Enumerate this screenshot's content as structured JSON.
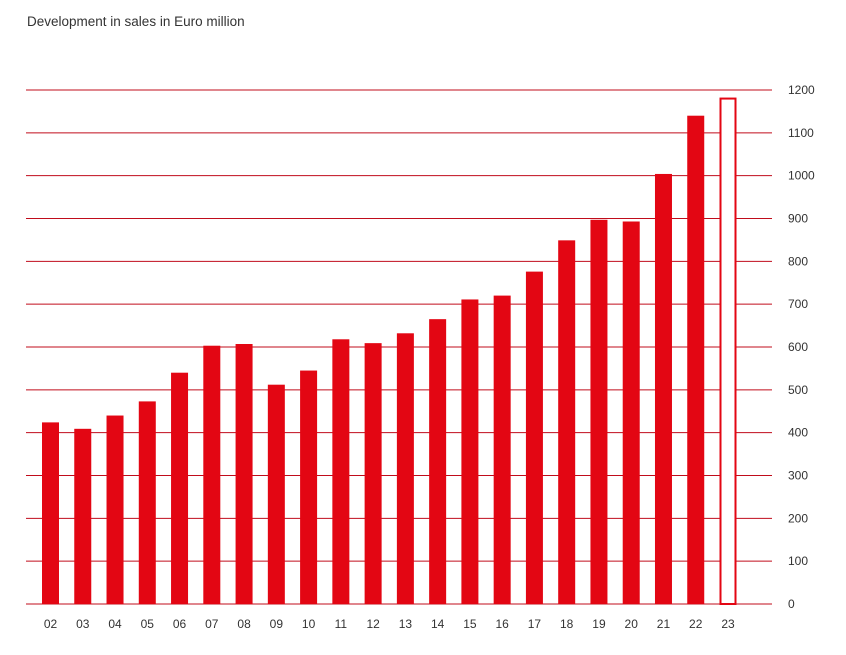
{
  "chart_data": {
    "type": "bar",
    "title": "Development in sales in Euro million",
    "xlabel": "",
    "ylabel": "",
    "categories": [
      "02",
      "03",
      "04",
      "05",
      "06",
      "07",
      "08",
      "09",
      "10",
      "11",
      "12",
      "13",
      "14",
      "15",
      "16",
      "17",
      "18",
      "19",
      "20",
      "21",
      "22",
      "23"
    ],
    "values": [
      424,
      409,
      440,
      473,
      540,
      603,
      607,
      512,
      545,
      618,
      609,
      632,
      665,
      711,
      720,
      776,
      849,
      897,
      893,
      1004,
      1140,
      1180
    ],
    "highlight": [
      "normal",
      "normal",
      "normal",
      "normal",
      "normal",
      "normal",
      "normal",
      "normal",
      "normal",
      "normal",
      "normal",
      "normal",
      "normal",
      "normal",
      "normal",
      "normal",
      "normal",
      "normal",
      "normal",
      "normal",
      "normal",
      "outline"
    ],
    "y_ticks": [
      "0",
      "100",
      "200",
      "300",
      "400",
      "500",
      "600",
      "700",
      "800",
      "900",
      "1000",
      "1100",
      "1200"
    ],
    "ylim": [
      0,
      1200
    ],
    "y_axis_position": "right",
    "grid": true,
    "colors": {
      "bar": "#e30613",
      "grid": "#c00c1b",
      "text": "#333333"
    }
  }
}
